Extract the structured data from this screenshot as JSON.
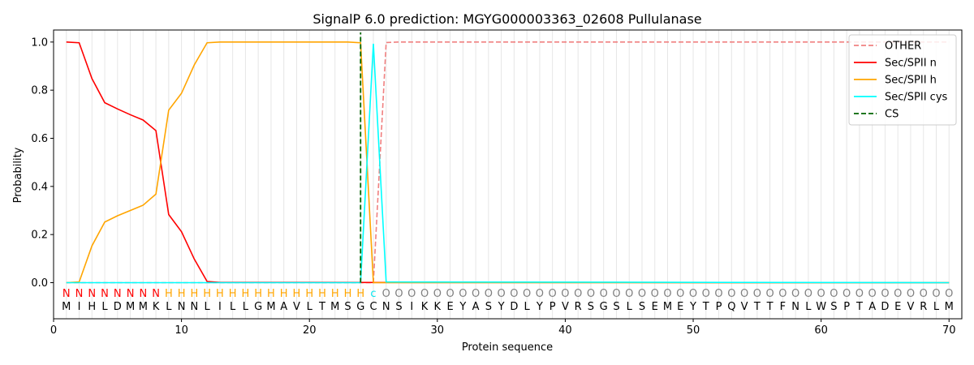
{
  "chart_data": {
    "type": "line",
    "title": "SignalP 6.0 prediction: MGYG000003363_02608 Pullulanase",
    "xlabel": "Protein sequence",
    "ylabel": "Probability",
    "xlim": [
      0,
      71
    ],
    "ylim": [
      -0.15,
      1.05
    ],
    "x_ticks": [
      0,
      10,
      20,
      30,
      40,
      50,
      60,
      70
    ],
    "y_ticks": [
      "0.0",
      "0.2",
      "0.4",
      "0.6",
      "0.8",
      "1.0"
    ],
    "y_tick_values": [
      0.0,
      0.2,
      0.4,
      0.6,
      0.8,
      1.0
    ],
    "grid": "vertical at each residue",
    "legend_position": "top-right",
    "sequence": [
      "M",
      "I",
      "H",
      "L",
      "D",
      "M",
      "M",
      "K",
      "L",
      "N",
      "N",
      "L",
      "I",
      "L",
      "L",
      "G",
      "M",
      "A",
      "V",
      "L",
      "T",
      "M",
      "S",
      "G",
      "C",
      "N",
      "S",
      "I",
      "K",
      "K",
      "E",
      "Y",
      "A",
      "S",
      "Y",
      "D",
      "L",
      "Y",
      "P",
      "V",
      "R",
      "S",
      "G",
      "S",
      "L",
      "S",
      "E",
      "M",
      "E",
      "Y",
      "T",
      "P",
      "Q",
      "V",
      "T",
      "T",
      "F",
      "N",
      "L",
      "W",
      "S",
      "P",
      "T",
      "A",
      "D",
      "E",
      "V",
      "R",
      "L",
      "M"
    ],
    "region_labels": [
      "N",
      "N",
      "N",
      "N",
      "N",
      "N",
      "N",
      "N",
      "H",
      "H",
      "H",
      "H",
      "H",
      "H",
      "H",
      "H",
      "H",
      "H",
      "H",
      "H",
      "H",
      "H",
      "H",
      "H",
      "c",
      "O",
      "O",
      "O",
      "O",
      "O",
      "O",
      "O",
      "O",
      "O",
      "O",
      "O",
      "O",
      "O",
      "O",
      "O",
      "O",
      "O",
      "O",
      "O",
      "O",
      "O",
      "O",
      "O",
      "O",
      "O",
      "O",
      "O",
      "O",
      "O",
      "O",
      "O",
      "O",
      "O",
      "O",
      "O",
      "O",
      "O",
      "O",
      "O",
      "O",
      "O",
      "O",
      "O",
      "O",
      "O"
    ],
    "region_colors": {
      "N": "#ff0000",
      "H": "#ffa500",
      "c": "#00e5ee",
      "O": "#808080"
    },
    "cleavage_site": 24,
    "series": [
      {
        "name": "OTHER",
        "color": "#f08080",
        "style": "dashed",
        "x": [
          1,
          24,
          25,
          26,
          27,
          70
        ],
        "values": [
          0,
          0,
          0,
          0.998,
          1.0,
          1.0
        ]
      },
      {
        "name": "Sec/SPII n",
        "color": "#ff0000",
        "style": "solid",
        "x": [
          1,
          2,
          3,
          4,
          5,
          6,
          7,
          8,
          9,
          10,
          11,
          12,
          13,
          70
        ],
        "values": [
          1.0,
          0.997,
          0.848,
          0.748,
          0.722,
          0.698,
          0.676,
          0.632,
          0.283,
          0.212,
          0.098,
          0.005,
          0.001,
          0.0
        ]
      },
      {
        "name": "Sec/SPII h",
        "color": "#ffa500",
        "style": "solid",
        "x": [
          1,
          2,
          3,
          4,
          5,
          6,
          7,
          8,
          9,
          10,
          11,
          12,
          13,
          14,
          23,
          24,
          25,
          26,
          70
        ],
        "values": [
          0.0,
          0.003,
          0.153,
          0.252,
          0.278,
          0.3,
          0.322,
          0.368,
          0.717,
          0.787,
          0.905,
          0.997,
          1.0,
          1.0,
          1.0,
          0.997,
          0.0,
          0.0,
          0.0
        ]
      },
      {
        "name": "Sec/SPII cys",
        "color": "#00ffff",
        "style": "solid",
        "x": [
          1,
          24,
          25,
          26,
          70
        ],
        "values": [
          0,
          0.0,
          0.993,
          0.003,
          0.0
        ]
      },
      {
        "name": "CS",
        "color": "#006400",
        "style": "dashed",
        "x": [
          24,
          24
        ],
        "values": [
          0,
          1.04
        ]
      }
    ]
  }
}
